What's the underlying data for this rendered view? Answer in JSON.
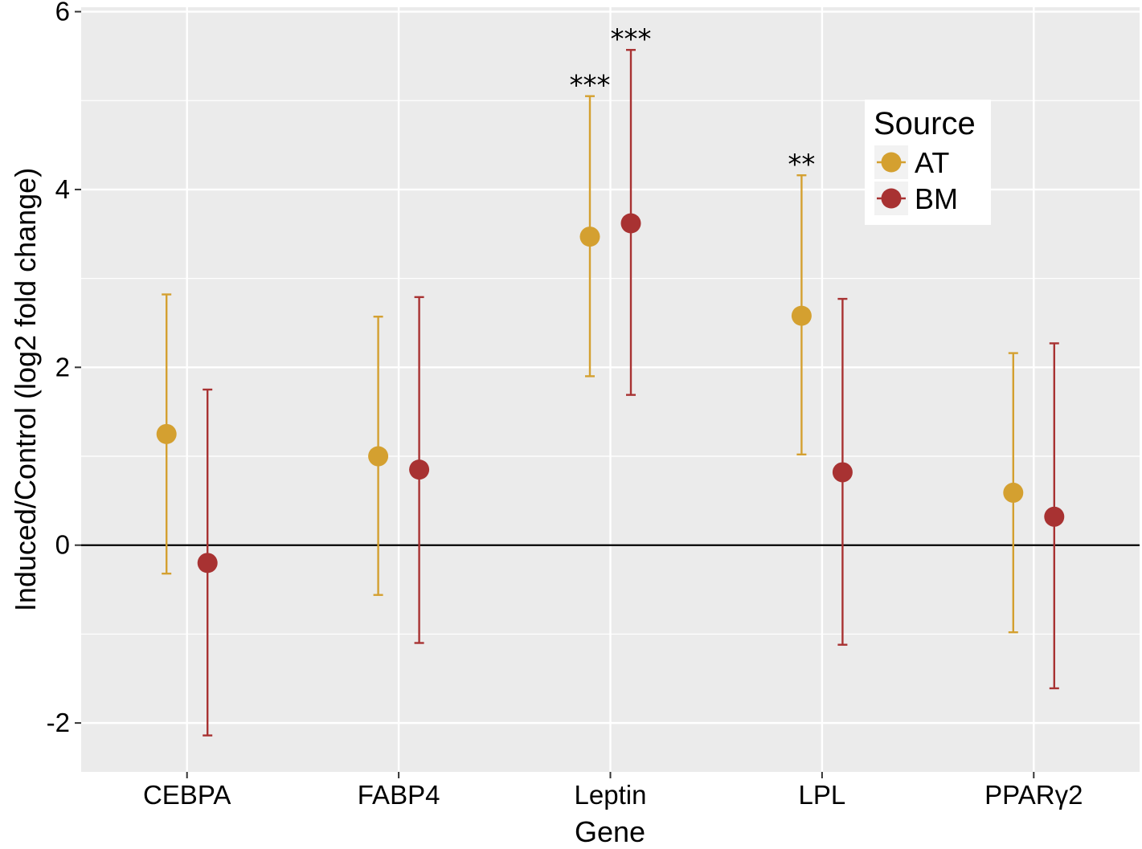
{
  "chart_data": {
    "type": "scatter",
    "subtype": "point-with-error-bars",
    "xlabel": "Gene",
    "ylabel": "Induced/Control (log2 fold change)",
    "categories": [
      "CEBPA",
      "FABP4",
      "Leptin",
      "LPL",
      "PPARγ2"
    ],
    "ylim": [
      -2.55,
      6.05
    ],
    "yticks": [
      -2,
      0,
      2,
      4,
      6
    ],
    "ytick_labels": [
      "-2",
      "0",
      "2",
      "4",
      "6"
    ],
    "grid": true,
    "reference_line_y": 0,
    "legend": {
      "title": "Source",
      "placement": "top-right"
    },
    "series": [
      {
        "name": "AT",
        "color": "#D4A030",
        "values": [
          1.25,
          1.0,
          3.47,
          2.58,
          0.59
        ],
        "lower": [
          -0.32,
          -0.56,
          1.9,
          1.02,
          -0.98
        ],
        "upper": [
          2.82,
          2.57,
          5.05,
          4.16,
          2.16
        ],
        "annotations": [
          "",
          "",
          "***",
          "**",
          ""
        ]
      },
      {
        "name": "BM",
        "color": "#A83232",
        "values": [
          -0.2,
          0.85,
          3.62,
          0.82,
          0.32
        ],
        "lower": [
          -2.14,
          -1.1,
          1.69,
          -1.12,
          -1.61
        ],
        "upper": [
          1.75,
          2.79,
          5.57,
          2.77,
          2.27
        ],
        "annotations": [
          "",
          "",
          "***",
          "",
          ""
        ]
      }
    ]
  }
}
